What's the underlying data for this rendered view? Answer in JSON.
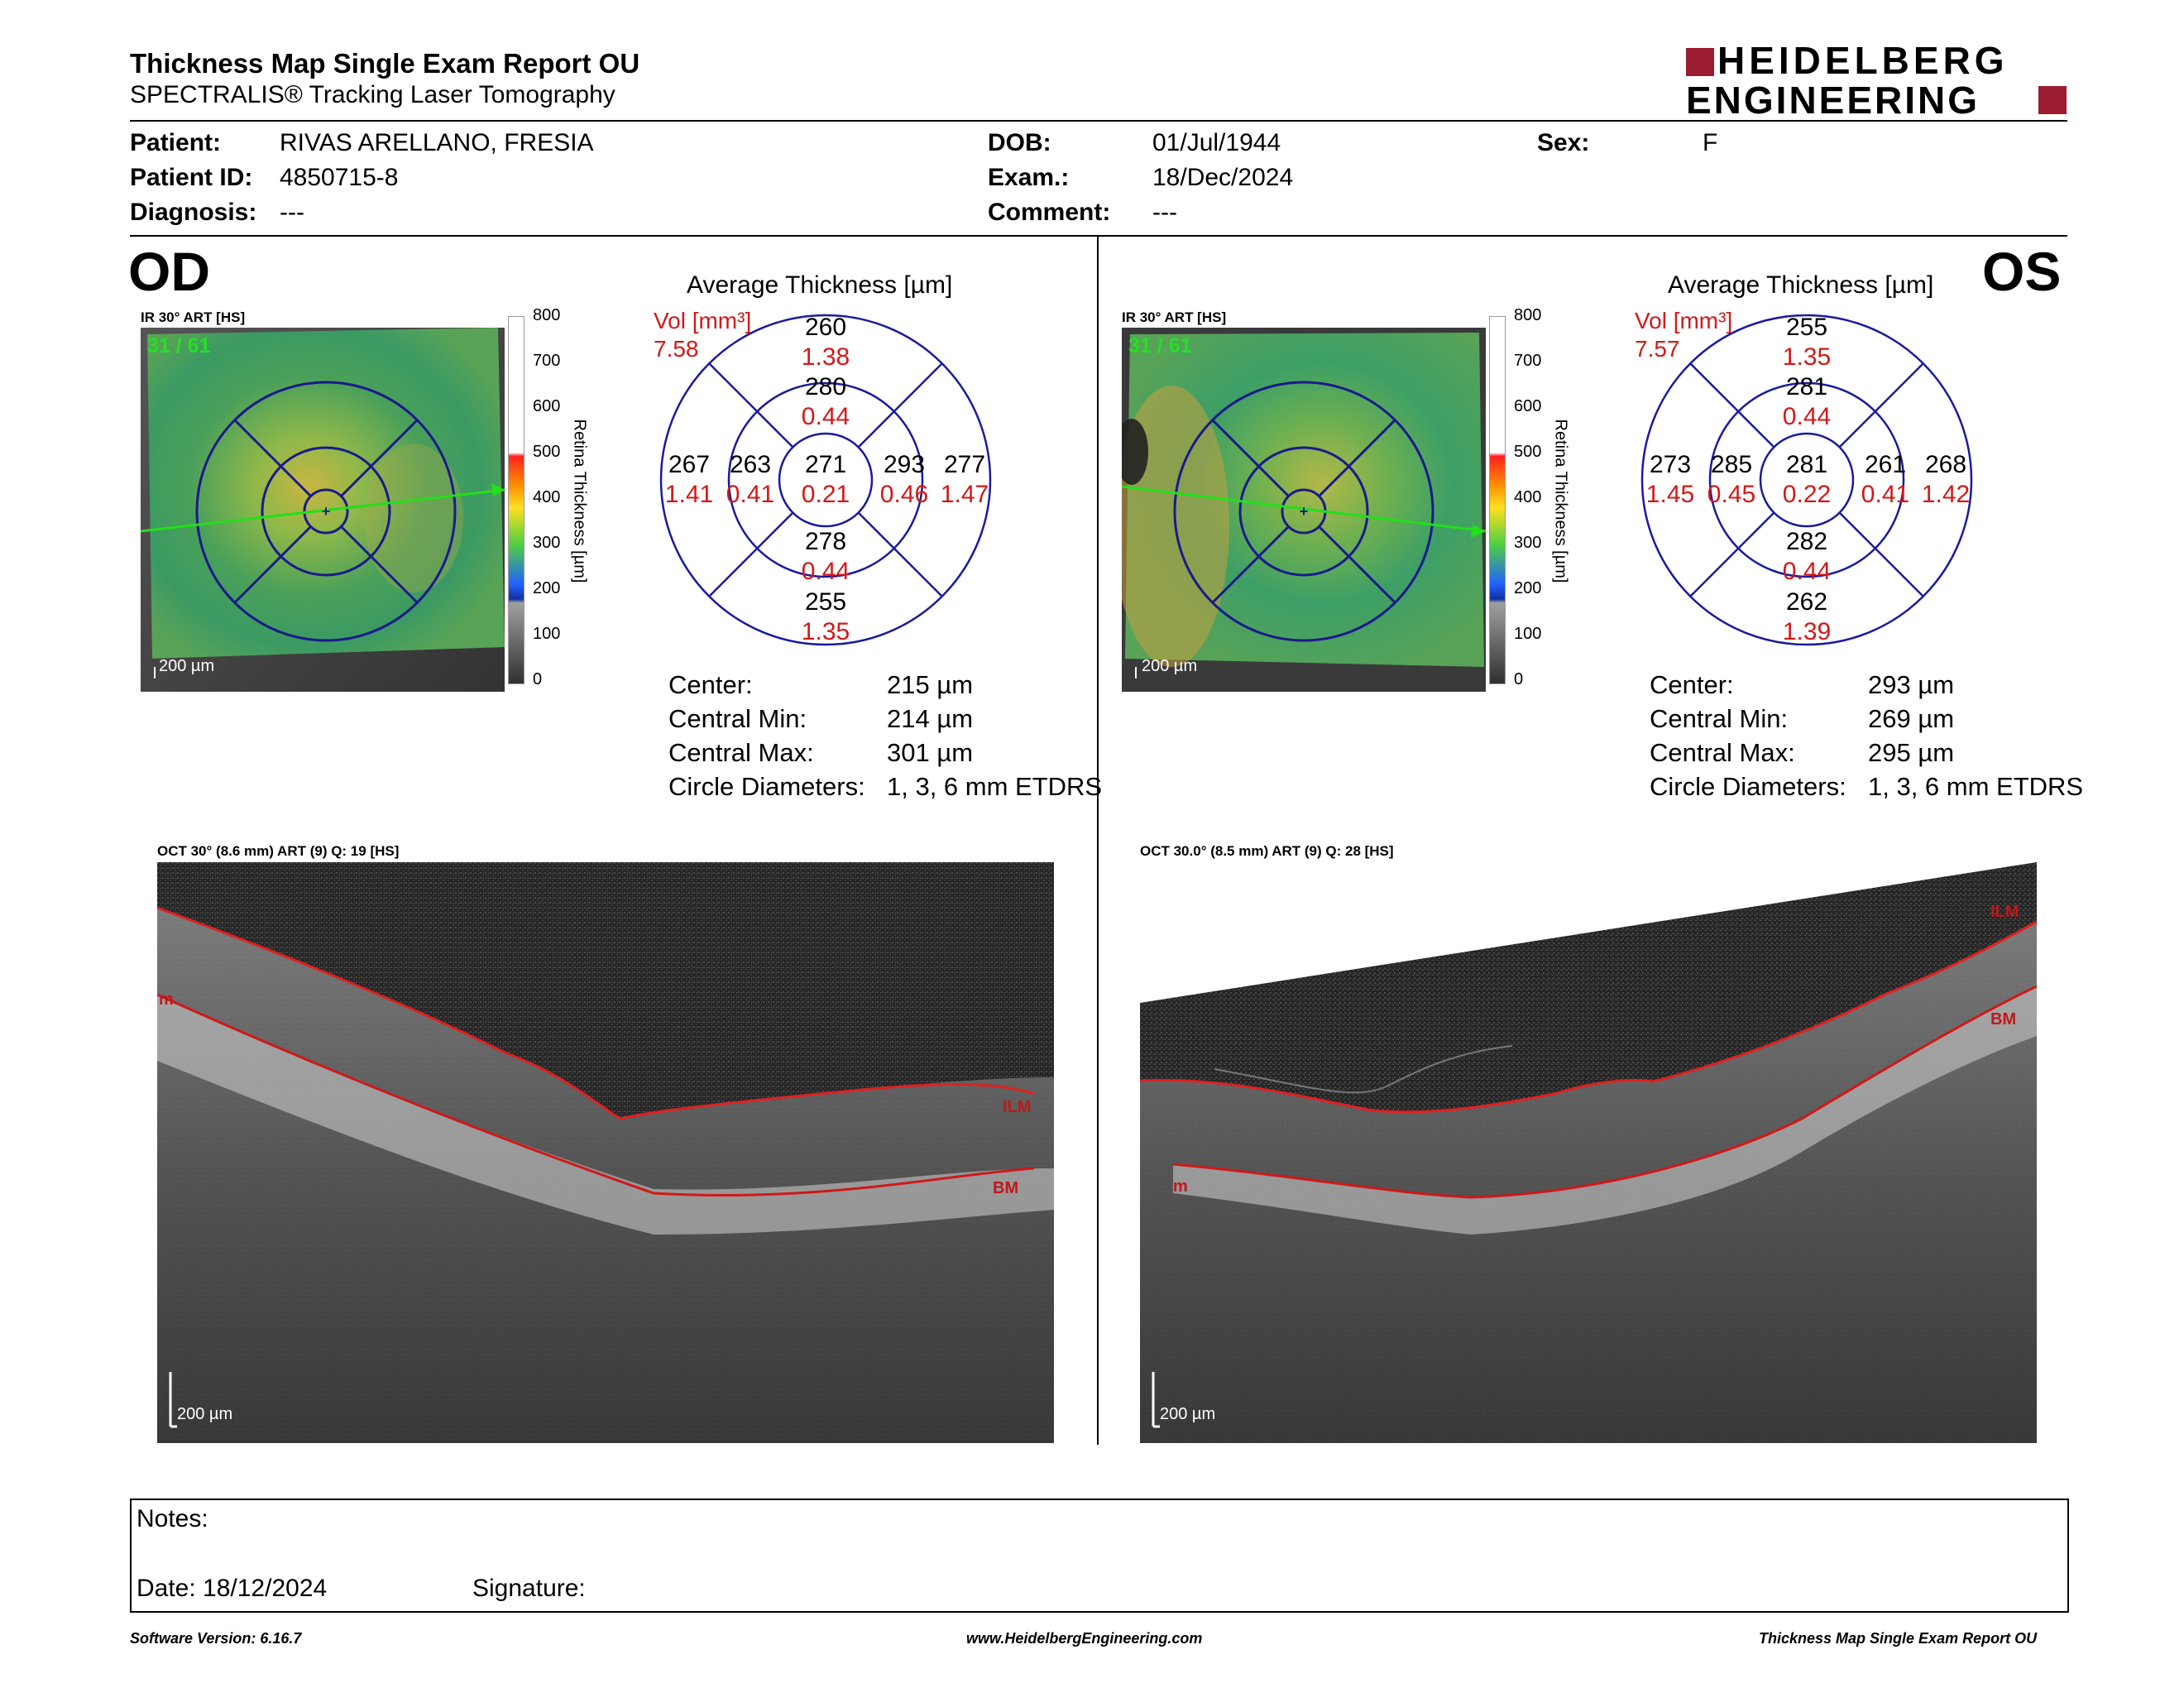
{
  "header": {
    "title": "Thickness Map Single Exam Report OU",
    "subtitle": "SPECTRALIS® Tracking Laser Tomography",
    "logo_line1": "HEIDELBERG",
    "logo_line2": "ENGINEERING",
    "brand_color": "#9b1b30"
  },
  "patient": {
    "patient_label": "Patient:",
    "patient_value": "RIVAS ARELLANO, FRESIA",
    "id_label": "Patient ID:",
    "id_value": "4850715-8",
    "diagnosis_label": "Diagnosis:",
    "diagnosis_value": "---",
    "dob_label": "DOB:",
    "dob_value": "01/Jul/1944",
    "exam_label": "Exam.:",
    "exam_value": "18/Dec/2024",
    "comment_label": "Comment:",
    "comment_value": "---",
    "sex_label": "Sex:",
    "sex_value": "F"
  },
  "scale": {
    "ticks": [
      "800",
      "700",
      "600",
      "500",
      "400",
      "300",
      "200",
      "100",
      "0"
    ],
    "axis_label": "Retina Thickness [µm]"
  },
  "od": {
    "eye_label": "OD",
    "ir_label": "IR 30° ART [HS]",
    "scan_counter": "31 / 61",
    "ir_scalebar": "200 µm",
    "chart_title": "Average Thickness [µm]",
    "vol_label": "Vol [mm³]",
    "vol_value": "7.58",
    "sectors": {
      "outer_top": {
        "t": "260",
        "v": "1.38"
      },
      "inner_top": {
        "t": "280",
        "v": "0.44"
      },
      "center": {
        "t": "271",
        "v": "0.21"
      },
      "inner_left": {
        "t": "263",
        "v": "0.41"
      },
      "outer_left": {
        "t": "267",
        "v": "1.41"
      },
      "inner_right": {
        "t": "293",
        "v": "0.46"
      },
      "outer_right": {
        "t": "277",
        "v": "1.47"
      },
      "inner_bottom": {
        "t": "278",
        "v": "0.44"
      },
      "outer_bottom": {
        "t": "255",
        "v": "1.35"
      }
    },
    "summary": {
      "center_label": "Center:",
      "center_value": "215 µm",
      "min_label": "Central Min:",
      "min_value": "214 µm",
      "max_label": "Central Max:",
      "max_value": "301 µm",
      "circle_label": "Circle Diameters:",
      "circle_value": "1, 3, 6 mm ETDRS"
    },
    "oct_label": "OCT 30° (8.6 mm) ART (9) Q: 19 [HS]",
    "oct_scalebar": "200 µm",
    "ilm": "ILM",
    "bm": "BM",
    "m": "m"
  },
  "os": {
    "eye_label": "OS",
    "ir_label": "IR 30° ART [HS]",
    "scan_counter": "31 / 61",
    "ir_scalebar": "200 µm",
    "chart_title": "Average Thickness [µm]",
    "vol_label": "Vol [mm³]",
    "vol_value": "7.57",
    "sectors": {
      "outer_top": {
        "t": "255",
        "v": "1.35"
      },
      "inner_top": {
        "t": "281",
        "v": "0.44"
      },
      "center": {
        "t": "281",
        "v": "0.22"
      },
      "inner_left": {
        "t": "285",
        "v": "0.45"
      },
      "outer_left": {
        "t": "273",
        "v": "1.45"
      },
      "inner_right": {
        "t": "261",
        "v": "0.41"
      },
      "outer_right": {
        "t": "268",
        "v": "1.42"
      },
      "inner_bottom": {
        "t": "282",
        "v": "0.44"
      },
      "outer_bottom": {
        "t": "262",
        "v": "1.39"
      }
    },
    "summary": {
      "center_label": "Center:",
      "center_value": "293 µm",
      "min_label": "Central Min:",
      "min_value": "269 µm",
      "max_label": "Central Max:",
      "max_value": "295 µm",
      "circle_label": "Circle Diameters:",
      "circle_value": "1, 3, 6 mm ETDRS"
    },
    "oct_label": "OCT 30.0° (8.5 mm) ART (9) Q: 28 [HS]",
    "oct_scalebar": "200 µm",
    "ilm": "ILM",
    "bm": "BM",
    "m": "m"
  },
  "notes": {
    "notes_label": "Notes:",
    "date_label": "Date: 18/12/2024",
    "signature_label": "Signature:"
  },
  "footer": {
    "software": "Software Version: 6.16.7",
    "website": "www.HeidelbergEngineering.com",
    "report": "Thickness Map Single Exam Report OU"
  }
}
